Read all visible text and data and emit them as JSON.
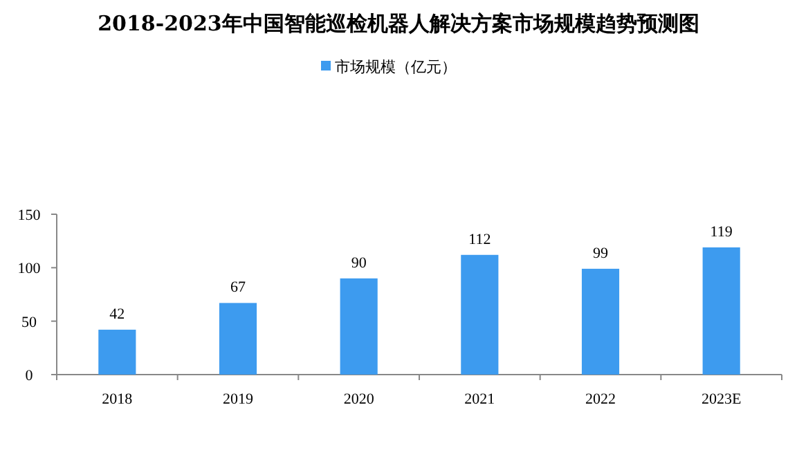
{
  "chart_data": {
    "type": "bar",
    "title": "2018-2023年中国智能巡检机器人解决方案市场规模趋势预测图",
    "categories": [
      "2018",
      "2019",
      "2020",
      "2021",
      "2022",
      "2023E"
    ],
    "series": [
      {
        "name": "市场规模（亿元）",
        "color": "#3d9bef",
        "values": [
          42,
          67,
          90,
          112,
          99,
          119
        ]
      }
    ],
    "ylim": [
      0,
      150
    ],
    "yticks": [
      0,
      50,
      100,
      150
    ],
    "grid": false,
    "legend": "top",
    "data_labels": true
  }
}
